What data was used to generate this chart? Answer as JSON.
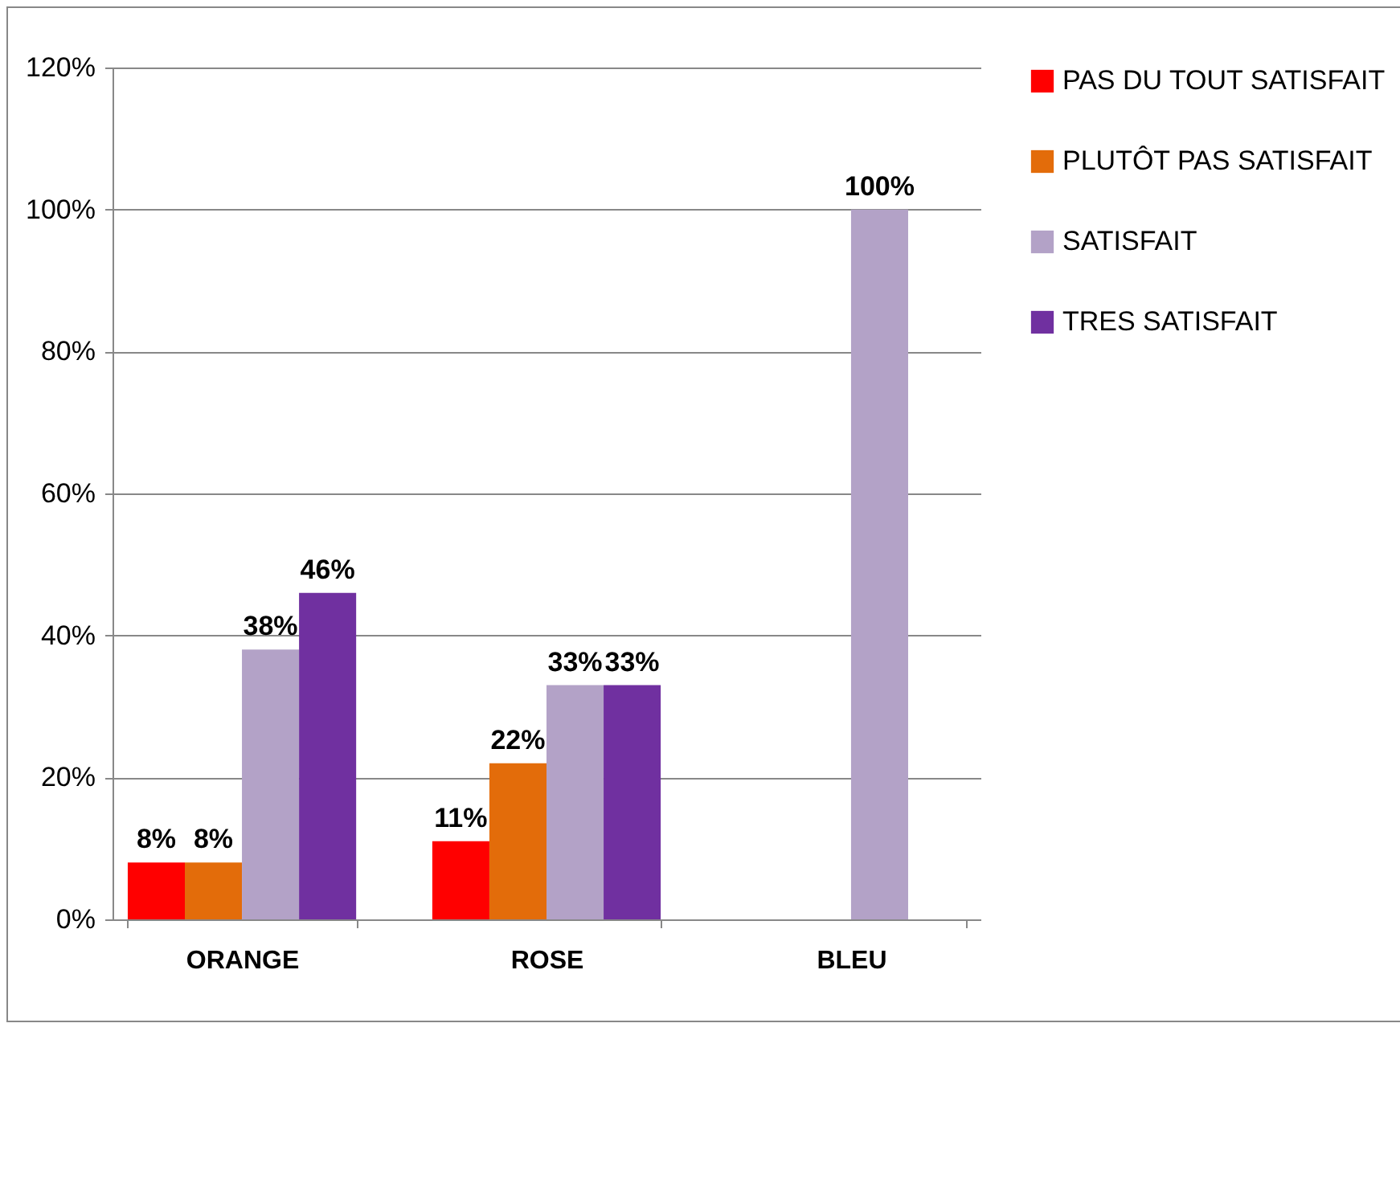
{
  "chart_data": {
    "type": "bar",
    "categories": [
      "ORANGE",
      "ROSE",
      "BLEU"
    ],
    "series": [
      {
        "name": "PAS DU TOUT SATISFAIT",
        "color": "#ff0000",
        "values": [
          8,
          11,
          null
        ],
        "value_labels": [
          "8%",
          "11%",
          null
        ]
      },
      {
        "name": "PLUTÔT PAS SATISFAIT",
        "color": "#e36c0a",
        "values": [
          8,
          22,
          null
        ],
        "value_labels": [
          "8%",
          "22%",
          null
        ]
      },
      {
        "name": "SATISFAIT",
        "color": "#b3a2c7",
        "values": [
          38,
          33,
          100
        ],
        "value_labels": [
          "38%",
          "33%",
          "100%"
        ]
      },
      {
        "name": "TRES SATISFAIT",
        "color": "#7030a0",
        "values": [
          46,
          33,
          null
        ],
        "value_labels": [
          "46%",
          "33%",
          null
        ]
      }
    ],
    "ylim": [
      0,
      120
    ],
    "yticks": [
      {
        "value": 0,
        "label": "0%"
      },
      {
        "value": 20,
        "label": "20%"
      },
      {
        "value": 40,
        "label": "40%"
      },
      {
        "value": 60,
        "label": "60%"
      },
      {
        "value": 80,
        "label": "80%"
      },
      {
        "value": 100,
        "label": "100%"
      },
      {
        "value": 120,
        "label": "120%"
      }
    ],
    "grid": "y",
    "legend": "right"
  }
}
